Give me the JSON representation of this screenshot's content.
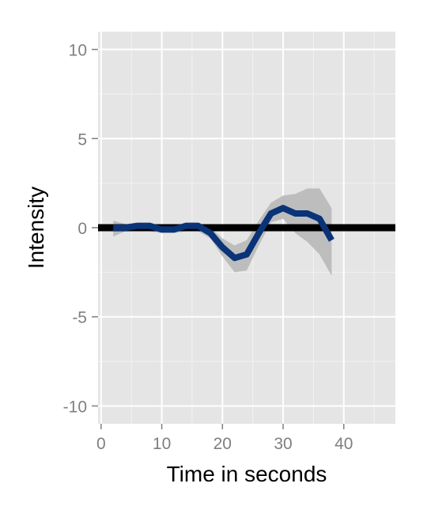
{
  "chart_data": {
    "type": "line",
    "xlabel": "Time in seconds",
    "ylabel": "Intensity",
    "xlim": [
      -0.5,
      48.5
    ],
    "ylim": [
      -11,
      11
    ],
    "x_ticks": [
      0,
      10,
      20,
      30,
      40
    ],
    "y_ticks": [
      -10,
      -5,
      0,
      5,
      10
    ],
    "x_tick_labels": [
      "0",
      "10",
      "20",
      "30",
      "40"
    ],
    "y_tick_labels": [
      "-10",
      "-5",
      "0",
      "5",
      "10"
    ],
    "grid": true,
    "reference_line": {
      "y": 0,
      "color": "#000000"
    },
    "series": [
      {
        "color": "#0a3378",
        "band_color": "#bdbdbd",
        "x": [
          2,
          4,
          6,
          8,
          10,
          12,
          14,
          16,
          18,
          20,
          22,
          24,
          26,
          28,
          30,
          32,
          34,
          36,
          38
        ],
        "values": [
          0.0,
          0.0,
          0.1,
          0.1,
          -0.1,
          -0.1,
          0.1,
          0.1,
          -0.3,
          -1.1,
          -1.7,
          -1.5,
          -0.3,
          0.8,
          1.1,
          0.8,
          0.8,
          0.5,
          -0.7
        ],
        "lower": [
          -0.5,
          -0.2,
          -0.2,
          -0.2,
          -0.3,
          -0.3,
          -0.2,
          -0.2,
          -0.6,
          -1.6,
          -2.5,
          -2.4,
          -1.0,
          0.3,
          0.5,
          -0.3,
          -0.8,
          -1.5,
          -2.7
        ],
        "upper": [
          0.4,
          0.2,
          0.3,
          0.3,
          0.1,
          0.1,
          0.3,
          0.3,
          0.0,
          -0.6,
          -1.0,
          -0.7,
          0.4,
          1.4,
          1.8,
          1.9,
          2.2,
          2.2,
          1.1
        ]
      }
    ]
  }
}
